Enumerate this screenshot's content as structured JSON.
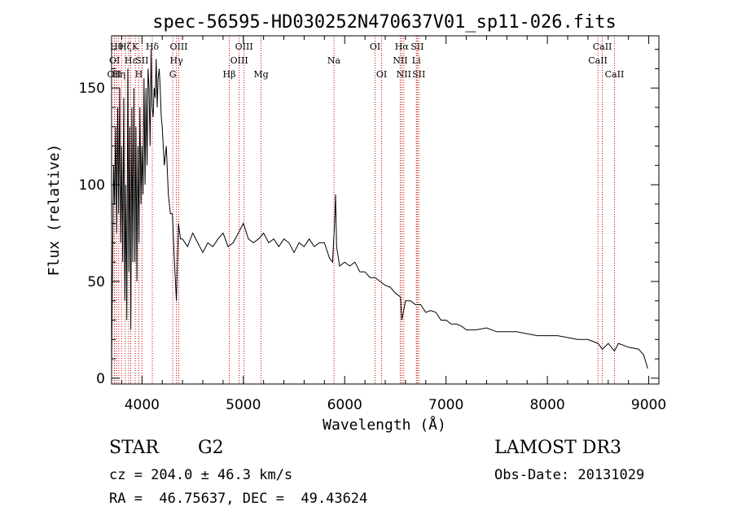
{
  "chart_data": {
    "type": "line",
    "title": "spec-56595-HD030252N470637V01_sp11-026.fits",
    "xlabel": "Wavelength (Å)",
    "ylabel": "Flux (relative)",
    "xlim": [
      3700,
      9100
    ],
    "ylim": [
      -3,
      177
    ],
    "xticks": [
      4000,
      5000,
      6000,
      7000,
      8000,
      9000
    ],
    "yticks": [
      0,
      50,
      100,
      150
    ],
    "grid": false,
    "colors": {
      "spectrum": "#000000",
      "line_markers": "#cc0000"
    },
    "series": [
      {
        "x": [
          3700,
          3710,
          3720,
          3730,
          3740,
          3750,
          3760,
          3770,
          3780,
          3790,
          3800,
          3810,
          3820,
          3830,
          3840,
          3850,
          3860,
          3870,
          3880,
          3890,
          3900,
          3910,
          3920,
          3930,
          3940,
          3950,
          3960,
          3970,
          3980,
          3990,
          4000,
          4010,
          4020,
          4030,
          4040,
          4050,
          4060,
          4070,
          4080,
          4090,
          4100,
          4110,
          4120,
          4130,
          4140,
          4150,
          4160,
          4170,
          4180,
          4190,
          4200,
          4220,
          4240,
          4260,
          4280,
          4300,
          4320,
          4340,
          4360,
          4380,
          4400,
          4450,
          4500,
          4550,
          4600,
          4650,
          4700,
          4750,
          4800,
          4850,
          4900,
          4950,
          5000,
          5050,
          5100,
          5150,
          5200,
          5250,
          5300,
          5350,
          5400,
          5450,
          5500,
          5550,
          5600,
          5650,
          5700,
          5750,
          5800,
          5850,
          5880,
          5900,
          5910,
          5920,
          5950,
          6000,
          6050,
          6100,
          6150,
          6200,
          6250,
          6300,
          6350,
          6400,
          6450,
          6500,
          6550,
          6563,
          6600,
          6650,
          6700,
          6750,
          6800,
          6850,
          6900,
          6950,
          7000,
          7050,
          7100,
          7150,
          7200,
          7300,
          7400,
          7500,
          7600,
          7700,
          7800,
          7900,
          8000,
          8100,
          8200,
          8300,
          8400,
          8500,
          8542,
          8600,
          8662,
          8700,
          8800,
          8900,
          8950,
          8990
        ],
        "values": [
          3,
          60,
          110,
          90,
          130,
          75,
          140,
          85,
          150,
          70,
          120,
          60,
          145,
          40,
          100,
          30,
          160,
          55,
          130,
          25,
          140,
          60,
          150,
          60,
          130,
          50,
          120,
          70,
          140,
          90,
          120,
          95,
          155,
          100,
          150,
          110,
          160,
          150,
          120,
          170,
          140,
          135,
          150,
          145,
          165,
          140,
          155,
          160,
          150,
          135,
          130,
          110,
          120,
          95,
          85,
          85,
          60,
          40,
          80,
          72,
          72,
          68,
          75,
          70,
          65,
          70,
          68,
          72,
          75,
          68,
          70,
          75,
          80,
          72,
          70,
          72,
          75,
          70,
          72,
          68,
          72,
          70,
          65,
          70,
          68,
          72,
          68,
          70,
          70,
          62,
          60,
          80,
          95,
          68,
          58,
          60,
          58,
          60,
          55,
          55,
          52,
          52,
          50,
          48,
          47,
          44,
          42,
          30,
          40,
          40,
          38,
          38,
          34,
          35,
          34,
          30,
          30,
          28,
          28,
          27,
          25,
          25,
          26,
          24,
          24,
          24,
          23,
          22,
          22,
          22,
          21,
          20,
          20,
          18,
          15,
          18,
          14,
          18,
          16,
          15,
          12,
          5
        ]
      }
    ],
    "lines": [
      {
        "x": 3727,
        "label": "OII",
        "row": 2
      },
      {
        "x": 3730,
        "label": "OI",
        "row": 1
      },
      {
        "x": 3750,
        "label": "Hθ",
        "row": 0
      },
      {
        "x": 3771,
        "label": "Hη",
        "row": 2
      },
      {
        "x": 3798,
        "label": "",
        "row": -1
      },
      {
        "x": 3835,
        "label": "Hζ",
        "row": 0
      },
      {
        "x": 3869,
        "label": "",
        "row": -1
      },
      {
        "x": 3889,
        "label": "Hε",
        "row": 1
      },
      {
        "x": 3934,
        "label": "K",
        "row": 0
      },
      {
        "x": 3969,
        "label": "H",
        "row": 2
      },
      {
        "x": 4000,
        "label": "SII",
        "row": 1
      },
      {
        "x": 4102,
        "label": "Hδ",
        "row": 0
      },
      {
        "x": 4304,
        "label": "G",
        "row": 2
      },
      {
        "x": 4340,
        "label": "Hγ",
        "row": 1
      },
      {
        "x": 4363,
        "label": "OIII",
        "row": 0
      },
      {
        "x": 4861,
        "label": "Hβ",
        "row": 2
      },
      {
        "x": 4959,
        "label": "OIII",
        "row": 1
      },
      {
        "x": 5007,
        "label": "OIII",
        "row": 0
      },
      {
        "x": 5175,
        "label": "Mg",
        "row": 2
      },
      {
        "x": 5894,
        "label": "Na",
        "row": 1
      },
      {
        "x": 6300,
        "label": "OI",
        "row": 0
      },
      {
        "x": 6364,
        "label": "OI",
        "row": 2
      },
      {
        "x": 6548,
        "label": "NII",
        "row": 1
      },
      {
        "x": 6563,
        "label": "Hα",
        "row": 0
      },
      {
        "x": 6583,
        "label": "NII",
        "row": 2
      },
      {
        "x": 6707,
        "label": "Li",
        "row": 1
      },
      {
        "x": 6716,
        "label": "SII",
        "row": 0
      },
      {
        "x": 6731,
        "label": "SII",
        "row": 2
      },
      {
        "x": 8498,
        "label": "CaII",
        "row": 1
      },
      {
        "x": 8542,
        "label": "CaII",
        "row": 0
      },
      {
        "x": 8662,
        "label": "CaII",
        "row": 2
      }
    ]
  },
  "info": {
    "object_class": "STAR",
    "subclass": "G2",
    "redshift": "cz = 204.0 ± 46.3 km/s",
    "coords": "RA =  46.75637, DEC =  49.43624",
    "survey": "LAMOST DR3",
    "obs_date": "Obs-Date: 20131029"
  }
}
